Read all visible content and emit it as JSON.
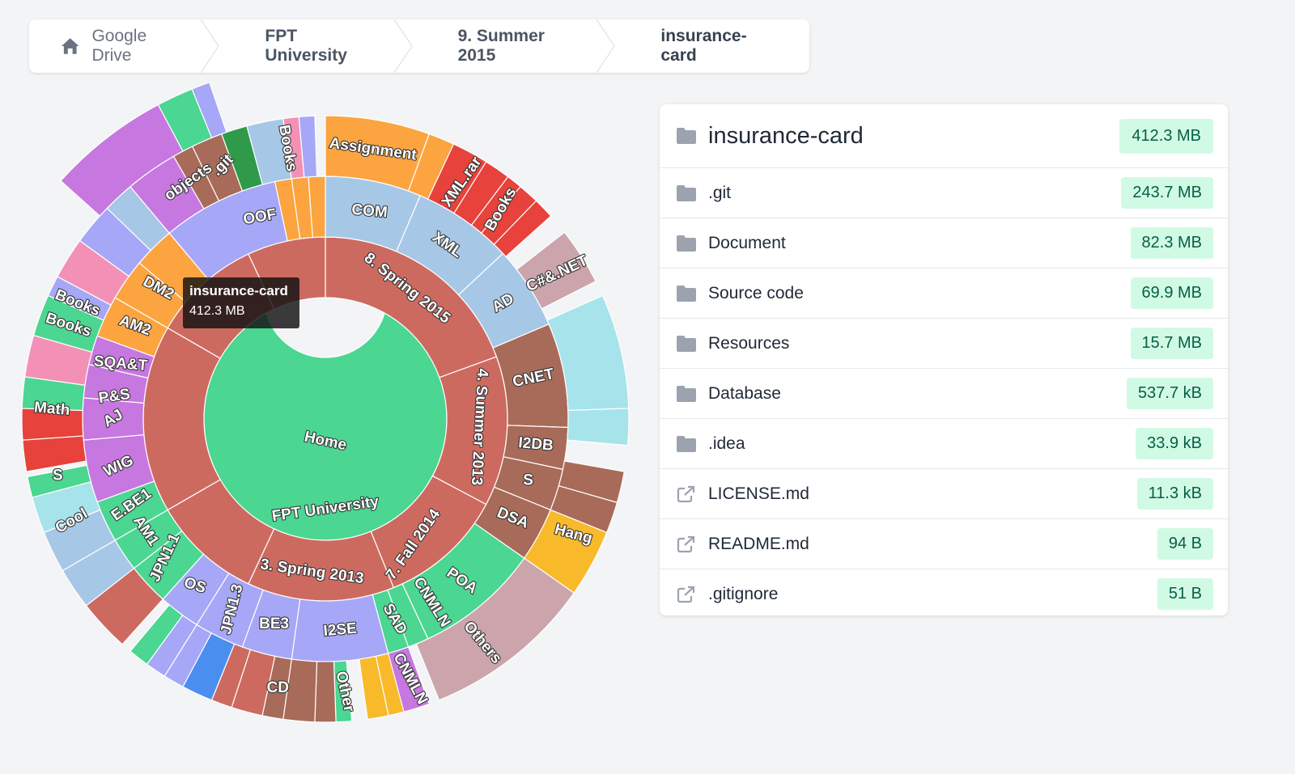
{
  "breadcrumb": [
    "Google Drive",
    "FPT University",
    "9. Summer 2015",
    "insurance-card"
  ],
  "tooltip": {
    "name": "insurance-card",
    "size": "412.3 MB"
  },
  "panel": {
    "title": "insurance-card",
    "title_size": "412.3 MB",
    "items": [
      {
        "name": ".git",
        "size": "243.7 MB",
        "icon": "folder-icon"
      },
      {
        "name": "Document",
        "size": "82.3 MB",
        "icon": "folder-icon"
      },
      {
        "name": "Source code",
        "size": "69.9 MB",
        "icon": "folder-icon"
      },
      {
        "name": "Resources",
        "size": "15.7 MB",
        "icon": "folder-icon"
      },
      {
        "name": "Database",
        "size": "537.7 kB",
        "icon": "folder-icon"
      },
      {
        "name": ".idea",
        "size": "33.9 kB",
        "icon": "folder-icon"
      },
      {
        "name": "LICENSE.md",
        "size": "11.3 kB",
        "icon": "external-link-icon"
      },
      {
        "name": "README.md",
        "size": "94 B",
        "icon": "external-link-icon"
      },
      {
        "name": ".gitignore",
        "size": "51 B",
        "icon": "external-link-icon"
      }
    ]
  },
  "colors": {
    "core": "#f8b92b",
    "ring1": "#4bd691",
    "ring2": "#cd6a60",
    "blue": "#a7c7e7",
    "orange": "#fca440",
    "red": "#e7423b",
    "purple": "#c777e0",
    "lavender": "#a6a7f6",
    "cyan": "#a7e3ea",
    "pink": "#f291b5",
    "brown": "#a86b59",
    "dgreen": "#2f9a4a",
    "mauve": "#cba5ab",
    "bright_blue": "#4a8ef0"
  },
  "sunburst": {
    "center": "Home",
    "ring1": [
      "FPT University"
    ],
    "ring2": [
      "8. Spring 2015",
      "4. Summer 2013",
      "7. Fall 2014",
      "3. Spring 2013"
    ],
    "ring3": [
      "COM",
      "XML",
      "AD",
      "CNET",
      "I2DB",
      "S",
      "DSA",
      "POA",
      "CNMLN",
      "SAD",
      "I2SE",
      "BE3",
      "JPN1.3",
      "OS",
      "JPN1.1",
      "AM1",
      "E.BE1",
      "WIG",
      "AJ",
      "P&S",
      "SQA&T",
      "AM2",
      "DM2",
      "OOF"
    ],
    "ring4": [
      "Assignment",
      "XML.rar",
      "Books",
      "C#&.NET",
      "Hang",
      "Others",
      "CNMLN",
      "Other",
      "CD",
      "Cool",
      "S",
      "Math",
      "Books",
      "Books",
      "objects",
      ".git",
      "Books"
    ]
  }
}
